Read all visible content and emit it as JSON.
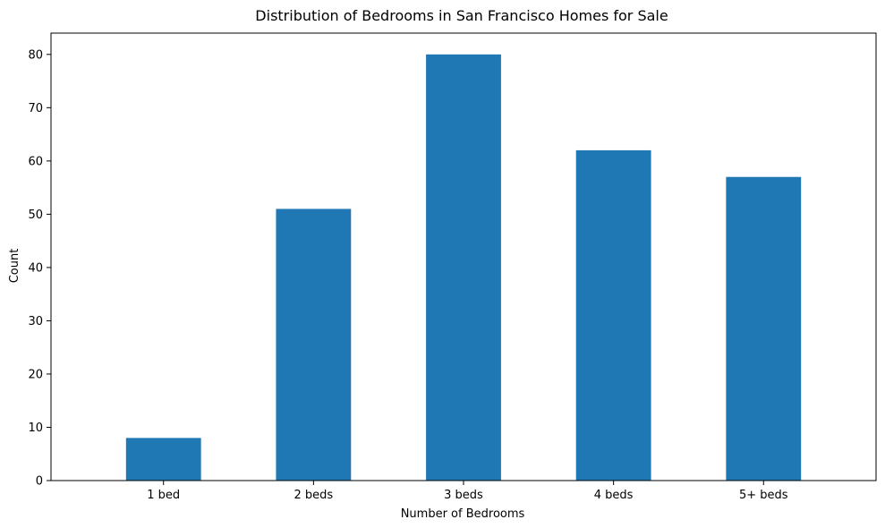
{
  "chart_data": {
    "type": "bar",
    "title": "Distribution of Bedrooms in San Francisco Homes for Sale",
    "xlabel": "Number of Bedrooms",
    "ylabel": "Count",
    "categories": [
      "1 bed",
      "2 beds",
      "3 beds",
      "4 beds",
      "5+ beds"
    ],
    "values": [
      8,
      51,
      80,
      62,
      57
    ],
    "ylim": [
      0,
      84
    ],
    "yticks": [
      0,
      10,
      20,
      30,
      40,
      50,
      60,
      70,
      80
    ],
    "ytick_labels": [
      "0",
      "10",
      "20",
      "30",
      "40",
      "50",
      "60",
      "70",
      "80"
    ],
    "grid": false,
    "bar_color": "#1f77b4"
  }
}
